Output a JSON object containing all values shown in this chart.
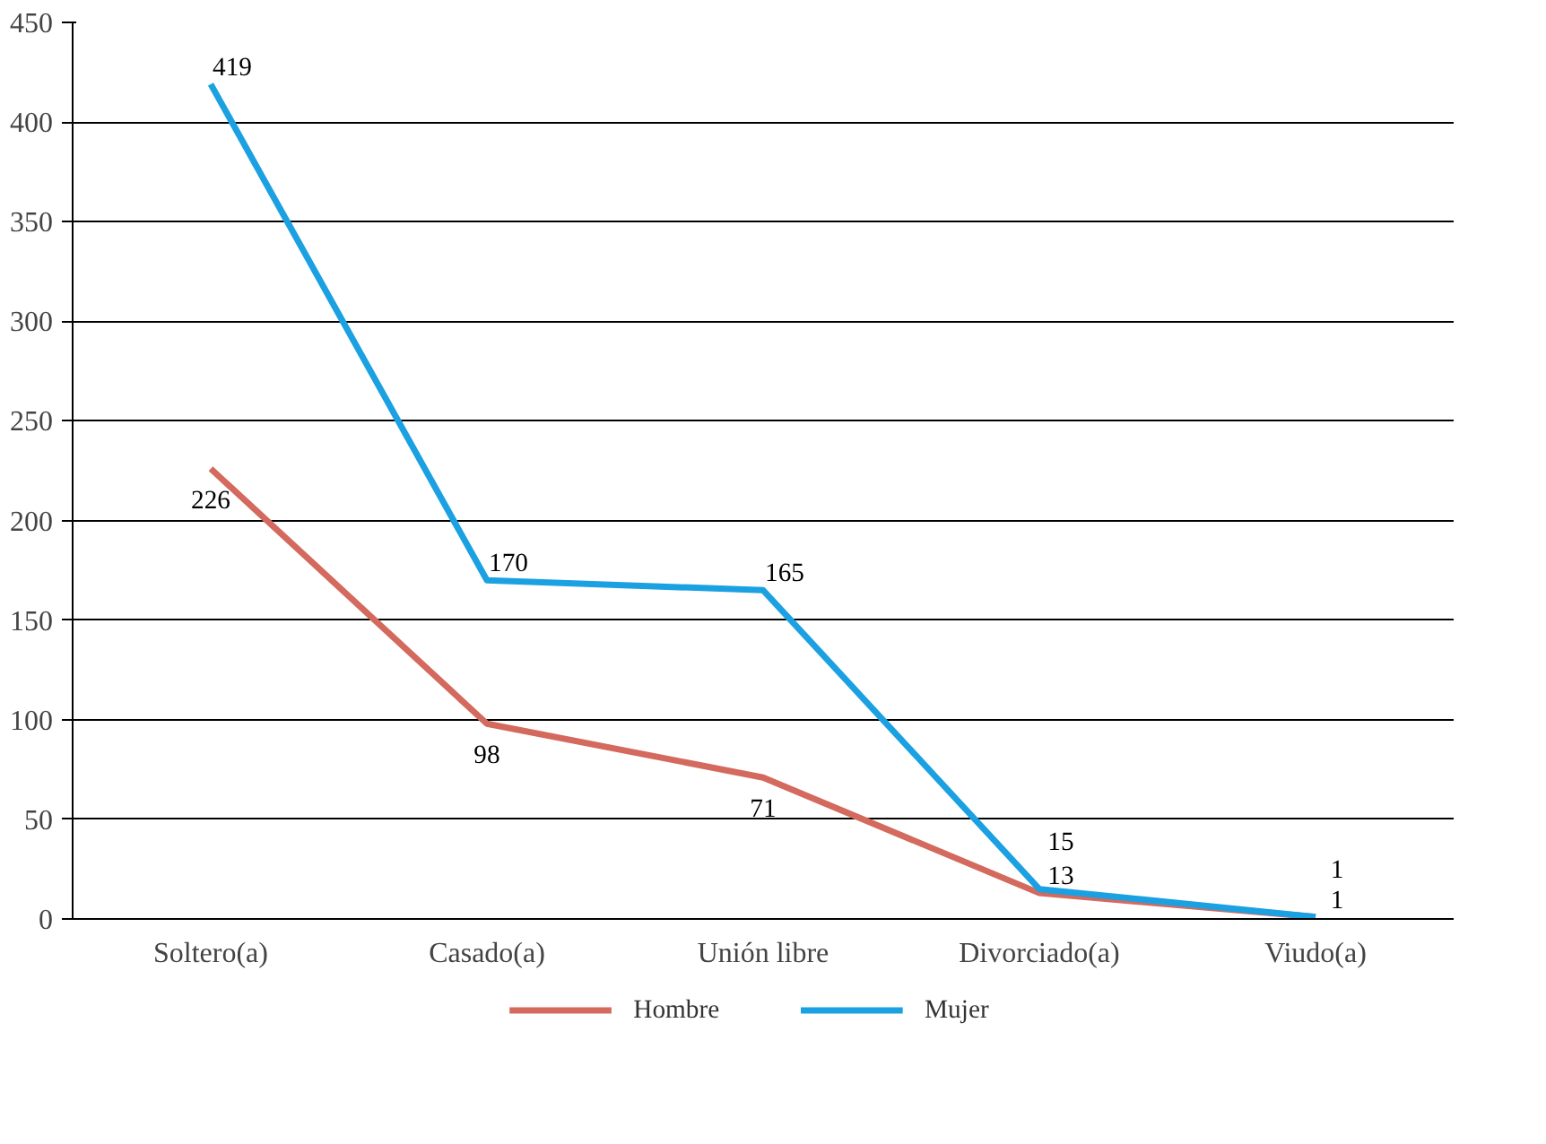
{
  "chart_data": {
    "type": "line",
    "categories": [
      "Soltero(a)",
      "Casado(a)",
      "Unión libre",
      "Divorciado(a)",
      "Viudo(a)"
    ],
    "series": [
      {
        "name": "Hombre",
        "color": "#d4695e",
        "values": [
          226,
          98,
          71,
          13,
          1
        ]
      },
      {
        "name": "Mujer",
        "color": "#1ba1e2",
        "values": [
          419,
          170,
          165,
          15,
          1
        ]
      }
    ],
    "ylim": [
      0,
      450
    ],
    "yticks": [
      0,
      50,
      100,
      150,
      200,
      250,
      300,
      350,
      400,
      450
    ],
    "grid": "y",
    "legend": "bottom",
    "data_labels": true,
    "marker": "none",
    "line_style": "solid"
  }
}
